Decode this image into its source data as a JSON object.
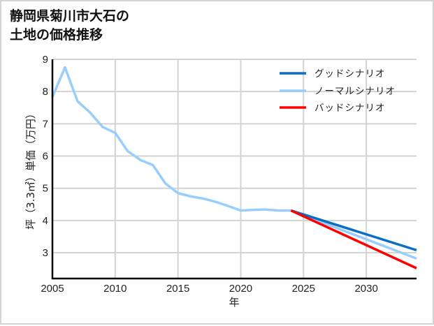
{
  "title": "静岡県菊川市大石の\n土地の価格推移",
  "chart_data": {
    "type": "line",
    "title": "静岡県菊川市大石の土地の価格推移",
    "xlabel": "年",
    "ylabel": "坪（3.3㎡）単価（万円）",
    "xlim": [
      2005,
      2034
    ],
    "ylim": [
      2.2,
      9
    ],
    "x_ticks": [
      2005,
      2010,
      2015,
      2020,
      2025,
      2030
    ],
    "y_ticks": [
      3,
      4,
      5,
      6,
      7,
      8,
      9
    ],
    "grid": true,
    "legend_position": "upper right",
    "series": [
      {
        "name": "グッドシナリオ",
        "color": "#0a6fc4",
        "x": [
          2024,
          2034
        ],
        "values": [
          4.31,
          3.08
        ]
      },
      {
        "name": "ノーマルシナリオ",
        "color": "#99cdfb",
        "x": [
          2005,
          2006,
          2007,
          2008,
          2009,
          2010,
          2011,
          2012,
          2013,
          2014,
          2015,
          2016,
          2017,
          2018,
          2019,
          2020,
          2021,
          2022,
          2023,
          2024,
          2034
        ],
        "values": [
          7.83,
          8.75,
          7.7,
          7.35,
          6.9,
          6.72,
          6.15,
          5.88,
          5.72,
          5.15,
          4.85,
          4.75,
          4.68,
          4.58,
          4.45,
          4.31,
          4.33,
          4.34,
          4.31,
          4.31,
          2.82
        ]
      },
      {
        "name": "バッドシナリオ",
        "color": "#ff0000",
        "x": [
          2024,
          2034
        ],
        "values": [
          4.31,
          2.52
        ]
      }
    ]
  }
}
